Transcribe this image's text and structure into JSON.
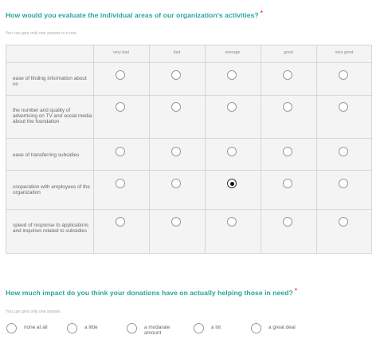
{
  "q1": {
    "title": "How would you evaluate the individual areas of our organization's activities?",
    "required_mark": "*",
    "hint": "You can give only one answer in a row.",
    "columns": [
      "very bad",
      "bad",
      "average",
      "good",
      "very good"
    ],
    "rows": [
      {
        "label": "ease of finding information about us",
        "selected": null
      },
      {
        "label": "the number and quality of advertising on TV and social media about the foundation",
        "selected": null
      },
      {
        "label": "ease of transferring subsidies",
        "selected": null
      },
      {
        "label": "cooperation with employees of the organization",
        "selected": "average"
      },
      {
        "label": "speed of response to applications and inquiries related to subsidies",
        "selected": null
      }
    ]
  },
  "q2": {
    "title": "How much impact do you think your donations have on actually helping those in need?",
    "required_mark": "*",
    "hint": "You can give only one answer.",
    "options": [
      {
        "label": "none at all",
        "selected": false
      },
      {
        "label": "a little",
        "selected": false
      },
      {
        "label": "a modarate amount",
        "selected": false
      },
      {
        "label": "a lot",
        "selected": false
      },
      {
        "label": "a great deal",
        "selected": false
      }
    ]
  },
  "colors": {
    "accent": "#27a59a",
    "required": "#e04848",
    "grid_bg": "#f4f4f4",
    "grid_line": "#d6d6d6"
  }
}
